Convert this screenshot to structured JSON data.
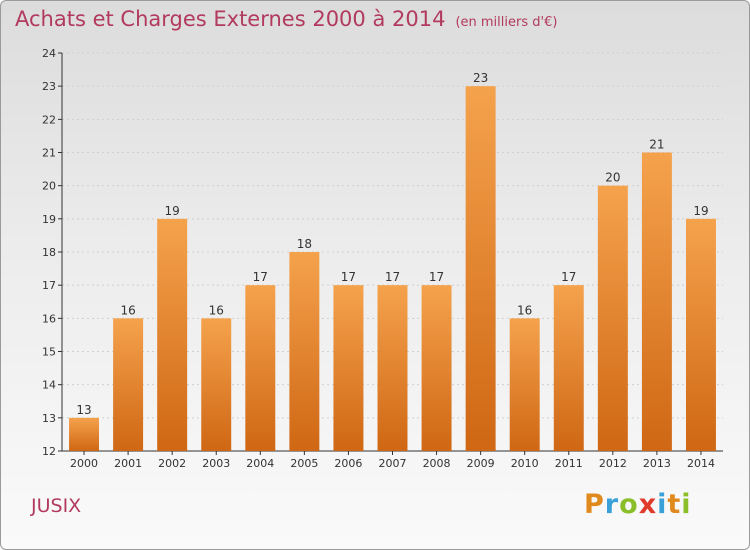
{
  "header": {
    "title": "Achats et Charges Externes 2000 à 2014",
    "subtitle": "(en milliers d'€)"
  },
  "footer": {
    "commune": "JUSIX",
    "logo_text": "Proxiti",
    "logo_letters": [
      {
        "ch": "P",
        "color": "#e08a1e"
      },
      {
        "ch": "r",
        "color": "#3aa0d8"
      },
      {
        "ch": "o",
        "color": "#8bbf2a"
      },
      {
        "ch": "x",
        "color": "#e03a2a"
      },
      {
        "ch": "i",
        "color": "#3aa0d8"
      },
      {
        "ch": "t",
        "color": "#e08a1e"
      },
      {
        "ch": "i",
        "color": "#8bbf2a"
      }
    ]
  },
  "colors": {
    "bar_light": "#f5a24d",
    "bar_dark": "#cf6714",
    "title": "#b23a5e",
    "axis": "#333333",
    "grid": "#cfcfcf"
  },
  "chart_data": {
    "type": "bar",
    "title": "Achats et Charges Externes 2000 à 2014",
    "subtitle": "(en milliers d'€)",
    "categories": [
      "2000",
      "2001",
      "2002",
      "2003",
      "2004",
      "2005",
      "2006",
      "2007",
      "2008",
      "2009",
      "2010",
      "2011",
      "2012",
      "2013",
      "2014"
    ],
    "values": [
      13,
      16,
      19,
      16,
      17,
      18,
      17,
      17,
      17,
      23,
      16,
      17,
      20,
      21,
      19
    ],
    "ylim": [
      12,
      24
    ],
    "yticks": [
      12,
      13,
      14,
      15,
      16,
      17,
      18,
      19,
      20,
      21,
      22,
      23,
      24
    ],
    "grid": true,
    "data_labels": true
  }
}
